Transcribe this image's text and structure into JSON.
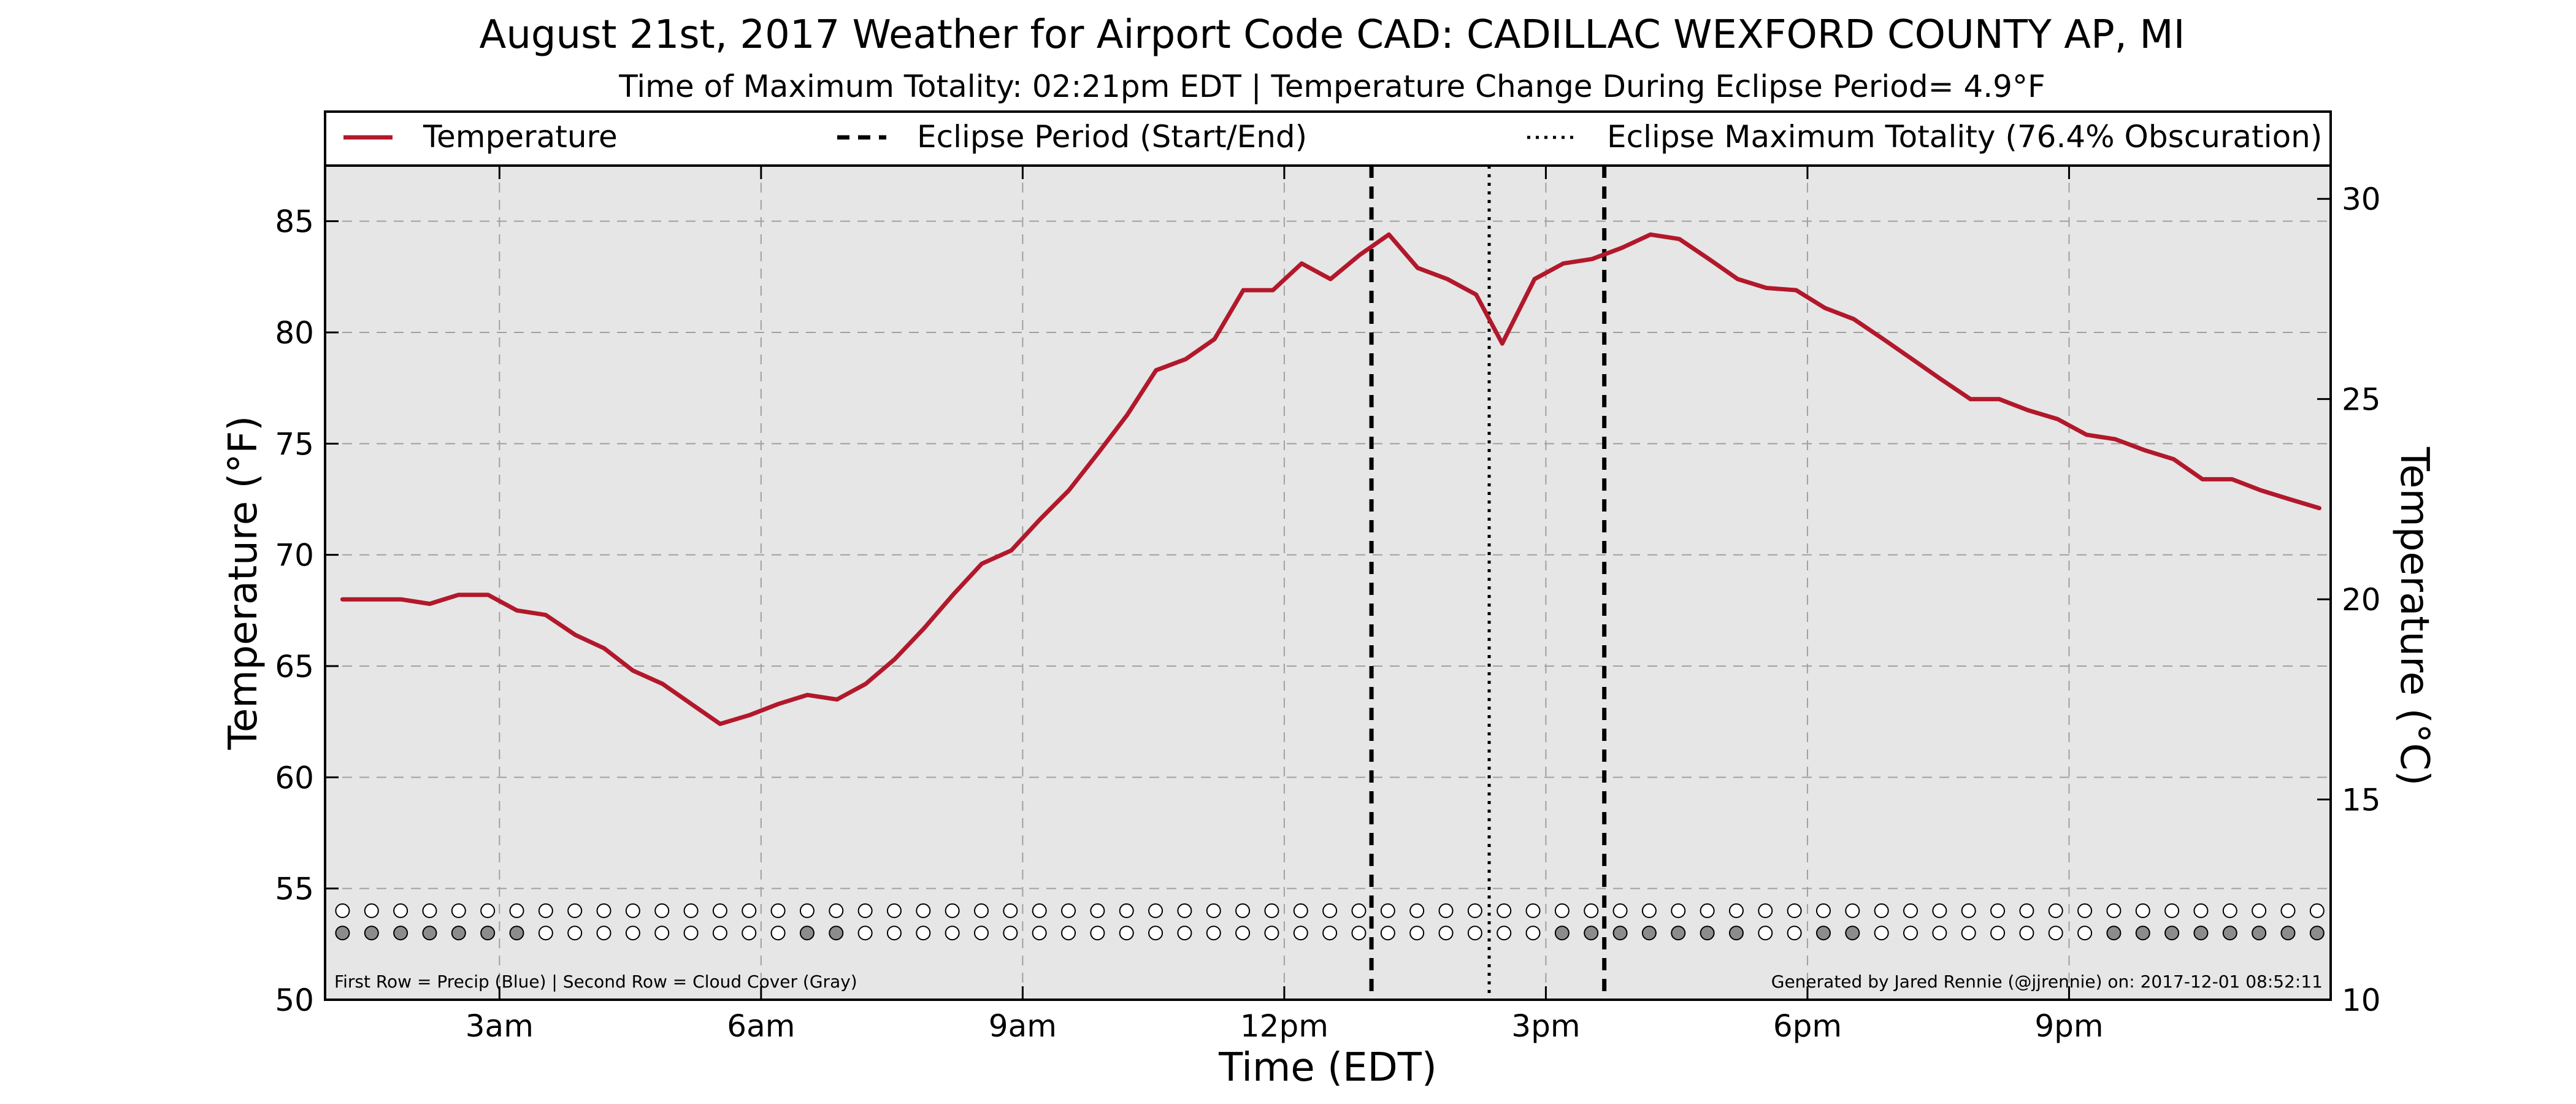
{
  "colors": {
    "background": "#ffffff",
    "plot_background": "#e6e6e6",
    "temperature_line": "#b2182b",
    "cloud_filled": "#8c8c8c",
    "cloud_empty": "#ffffff",
    "grid": "#a0a0a0"
  },
  "chart_data": {
    "type": "line",
    "title": "August 21st, 2017 Weather for Airport Code CAD: CADILLAC WEXFORD COUNTY AP, MI",
    "subtitle": "Time of Maximum Totality: 02:21pm EDT | Temperature Change During Eclipse Period= 4.9°F",
    "xlabel": "Time (EDT)",
    "ylabel": "Temperature (°F)",
    "y2label": "Temperature (°C)",
    "x_unit": "hours since midnight EDT",
    "xlim": [
      1.0,
      24.0
    ],
    "ylim": [
      50,
      87.5
    ],
    "y2lim": [
      10,
      30.83
    ],
    "x_ticks": [
      {
        "x": 3,
        "label": "3am"
      },
      {
        "x": 6,
        "label": "6am"
      },
      {
        "x": 9,
        "label": "9am"
      },
      {
        "x": 12,
        "label": "12pm"
      },
      {
        "x": 15,
        "label": "3pm"
      },
      {
        "x": 18,
        "label": "6pm"
      },
      {
        "x": 21,
        "label": "9pm"
      }
    ],
    "y_ticks": [
      50,
      55,
      60,
      65,
      70,
      75,
      80,
      85
    ],
    "y2_ticks": [
      10,
      15,
      20,
      25,
      30
    ],
    "grid": true,
    "legend": {
      "placement": "top",
      "entries": [
        {
          "label": "Temperature",
          "style": "solid"
        },
        {
          "label": "Eclipse Period (Start/End)",
          "style": "dashed"
        },
        {
          "label": "Eclipse Maximum Totality (76.4% Obscuration)",
          "style": "dotted"
        }
      ]
    },
    "series": [
      {
        "name": "Temperature",
        "x": [
          1.2,
          1.53,
          1.87,
          2.2,
          2.53,
          2.87,
          3.2,
          3.53,
          3.87,
          4.2,
          4.53,
          4.87,
          5.2,
          5.53,
          5.87,
          6.2,
          6.53,
          6.87,
          7.2,
          7.53,
          7.87,
          8.2,
          8.53,
          8.87,
          9.2,
          9.53,
          9.87,
          10.2,
          10.53,
          10.87,
          11.2,
          11.53,
          11.87,
          12.2,
          12.53,
          12.87,
          13.2,
          13.53,
          13.87,
          14.2,
          14.5,
          14.87,
          15.2,
          15.53,
          15.87,
          16.2,
          16.53,
          16.87,
          17.2,
          17.53,
          17.87,
          18.2,
          18.53,
          18.87,
          19.2,
          19.53,
          19.87,
          20.2,
          20.53,
          20.87,
          21.2,
          21.53,
          21.87,
          22.2,
          22.53,
          22.87,
          23.2,
          23.53,
          23.87
        ],
        "values": [
          68.0,
          68.0,
          68.0,
          67.8,
          68.2,
          68.2,
          67.5,
          67.3,
          66.4,
          65.8,
          64.8,
          64.2,
          63.3,
          62.4,
          62.8,
          63.3,
          63.7,
          63.5,
          64.2,
          65.3,
          66.7,
          68.2,
          69.6,
          70.2,
          71.6,
          72.9,
          74.6,
          76.3,
          78.3,
          78.8,
          79.7,
          81.9,
          81.9,
          83.1,
          82.4,
          83.5,
          84.4,
          82.9,
          82.4,
          81.7,
          79.5,
          82.4,
          83.1,
          83.3,
          83.8,
          84.4,
          84.2,
          83.3,
          82.4,
          82.0,
          81.9,
          81.1,
          80.6,
          79.7,
          78.8,
          77.9,
          77.0,
          77.0,
          76.5,
          76.1,
          75.4,
          75.2,
          74.7,
          74.3,
          73.4,
          73.4,
          72.9,
          72.5,
          72.1
        ]
      }
    ],
    "eclipse_start": 13.0,
    "eclipse_end": 15.67,
    "eclipse_max": 14.35,
    "precip_row_y": 54.0,
    "cloud_row_y": 53.0,
    "marker_x_start": 1.2,
    "marker_x_step": 0.333,
    "marker_count": 69,
    "cloud_cover_filled": [
      0,
      1,
      2,
      3,
      4,
      5,
      6,
      16,
      17,
      42,
      43,
      44,
      45,
      46,
      47,
      48,
      51,
      52,
      61,
      62,
      63,
      64,
      65,
      66,
      67,
      68
    ],
    "footnote_left": "First Row = Precip (Blue) | Second Row = Cloud Cover (Gray)",
    "footnote_right": "Generated by Jared Rennie (@jjrennie) on: 2017-12-01 08:52:11"
  }
}
